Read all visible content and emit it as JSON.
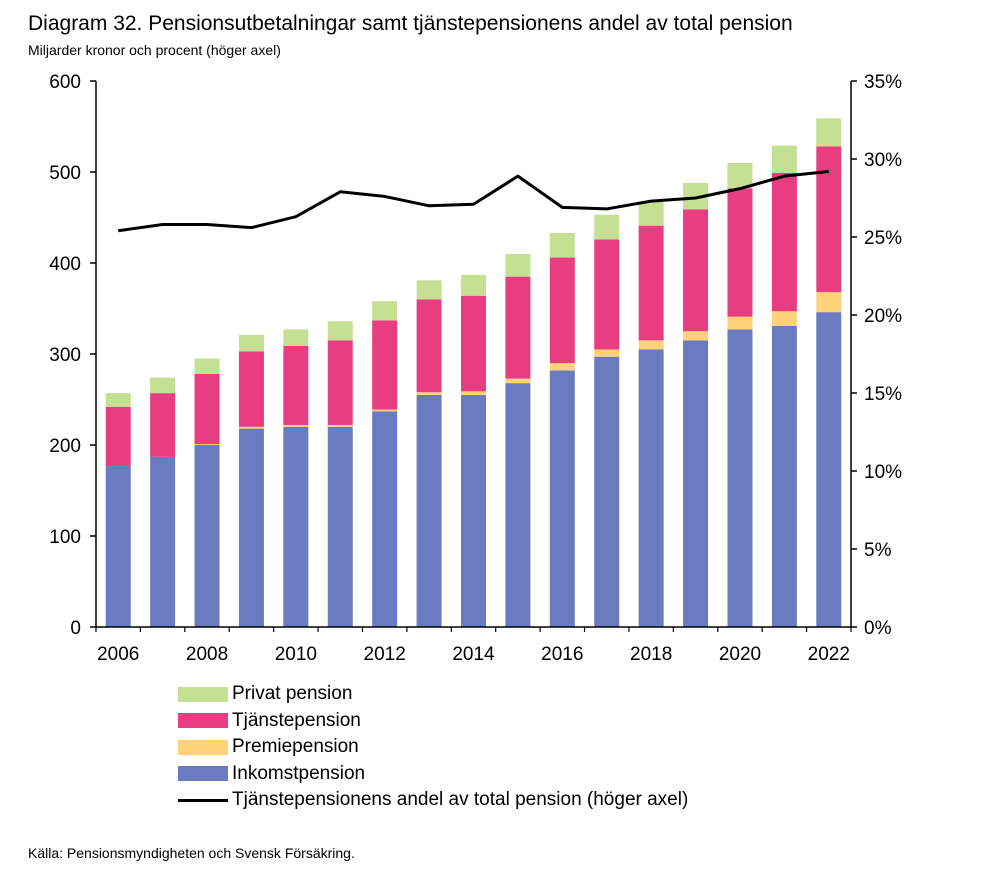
{
  "title": "Diagram 32. Pensionsutbetalningar samt tjänstepensionens andel av total pension",
  "subtitle": "Miljarder kronor och procent (höger axel)",
  "source": "Källa: Pensionsmyndigheten och Svensk Försäkring.",
  "colors": {
    "inkomst": "#6a7bbf",
    "premie": "#ffd27a",
    "tjanste": "#e83e81",
    "privat": "#c5df93",
    "line": "#000000"
  },
  "legend": [
    {
      "key": "privat",
      "label": "Privat pension"
    },
    {
      "key": "tjanste",
      "label": "Tjänstepension"
    },
    {
      "key": "premie",
      "label": "Premiepension"
    },
    {
      "key": "inkomst",
      "label": "Inkomstpension"
    },
    {
      "key": "line",
      "label": "Tjänstepensionens andel av total pension (höger axel)"
    }
  ],
  "chart_data": {
    "type": "bar",
    "stacked": true,
    "title": "Diagram 32. Pensionsutbetalningar samt tjänstepensionens andel av total pension",
    "ylabel": "Miljarder kronor",
    "y2label": "Procent (höger axel)",
    "categories": [
      "2006",
      "2007",
      "2008",
      "2009",
      "2010",
      "2011",
      "2012",
      "2013",
      "2014",
      "2015",
      "2016",
      "2017",
      "2018",
      "2019",
      "2020",
      "2021",
      "2022"
    ],
    "x_tick_labels": [
      "2006",
      "2008",
      "2010",
      "2012",
      "2014",
      "2016",
      "2018",
      "2020",
      "2022"
    ],
    "ylim": [
      0,
      600
    ],
    "y_ticks": [
      "0",
      "100",
      "200",
      "300",
      "400",
      "500",
      "600"
    ],
    "y2lim": [
      0,
      35
    ],
    "y2_ticks": [
      "0%",
      "5%",
      "10%",
      "15%",
      "20%",
      "25%",
      "30%",
      "35%"
    ],
    "series": [
      {
        "key": "inkomst",
        "name": "Inkomstpension",
        "values": [
          177,
          187,
          200,
          218,
          220,
          220,
          237,
          255,
          255,
          268,
          282,
          297,
          305,
          315,
          327,
          331,
          346
        ]
      },
      {
        "key": "premie",
        "name": "Premiepension",
        "values": [
          0,
          0,
          1,
          2,
          2,
          2,
          2,
          3,
          4,
          5,
          8,
          8,
          10,
          10,
          14,
          16,
          22
        ]
      },
      {
        "key": "tjanste",
        "name": "Tjänstepension",
        "values": [
          65,
          70,
          77,
          83,
          87,
          93,
          98,
          102,
          105,
          112,
          116,
          121,
          126,
          134,
          141,
          152,
          160
        ]
      },
      {
        "key": "privat",
        "name": "Privat pension",
        "values": [
          15,
          17,
          17,
          18,
          18,
          21,
          21,
          21,
          23,
          25,
          27,
          27,
          26,
          29,
          28,
          30,
          31
        ]
      }
    ],
    "line": {
      "name": "Tjänstepensionens andel av total pension (höger axel)",
      "axis": "right",
      "values": [
        25.4,
        25.8,
        25.8,
        25.6,
        26.3,
        27.9,
        27.6,
        27.0,
        27.1,
        28.9,
        26.9,
        26.8,
        27.3,
        27.5,
        28.1,
        28.9,
        29.2
      ]
    }
  }
}
